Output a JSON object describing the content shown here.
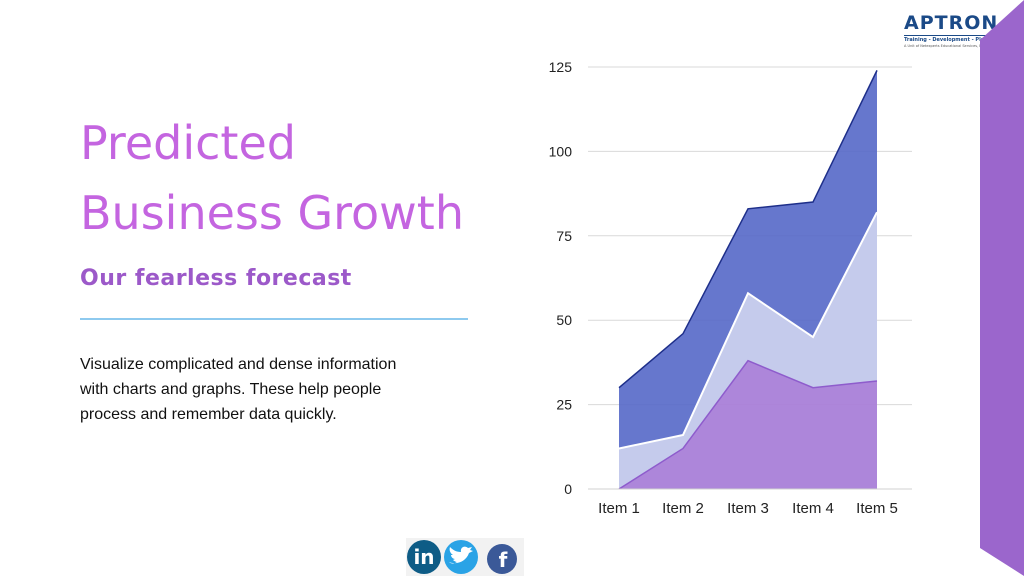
{
  "slide": {
    "title_line1": "Predicted",
    "title_line2": "Business Growth",
    "subtitle": "Our fearless forecast",
    "body_line1": "Visualize complicated and dense information",
    "body_line2": "with charts and graphs. These help people",
    "body_line3": "process and remember data quickly."
  },
  "logo": {
    "brand": "APTRON",
    "tagline": "Training - Development - Placement",
    "subline": "A Unit of Netexperts Educational Services, New Delhi"
  },
  "social_icons": [
    "linkedin-icon",
    "twitter-icon",
    "facebook-icon"
  ],
  "colors": {
    "title": "#c465e0",
    "subtitle": "#9c59c9",
    "accent_bar": "#9b66cc",
    "series_top": "#5568c8",
    "series_mid": "#c5cbec",
    "series_bottom": "#a980d8"
  },
  "chart_data": {
    "type": "area",
    "stacked": true,
    "categories": [
      "Item 1",
      "Item 2",
      "Item 3",
      "Item 4",
      "Item 5"
    ],
    "series": [
      {
        "values": [
          0,
          12,
          38,
          30,
          32
        ]
      },
      {
        "values": [
          12,
          4,
          20,
          15,
          50
        ]
      },
      {
        "values": [
          18,
          30,
          25,
          40,
          42
        ]
      }
    ],
    "ylim": [
      0,
      125
    ],
    "yticks": [
      0,
      25,
      50,
      75,
      100,
      125
    ],
    "grid": true,
    "legend": "none"
  }
}
